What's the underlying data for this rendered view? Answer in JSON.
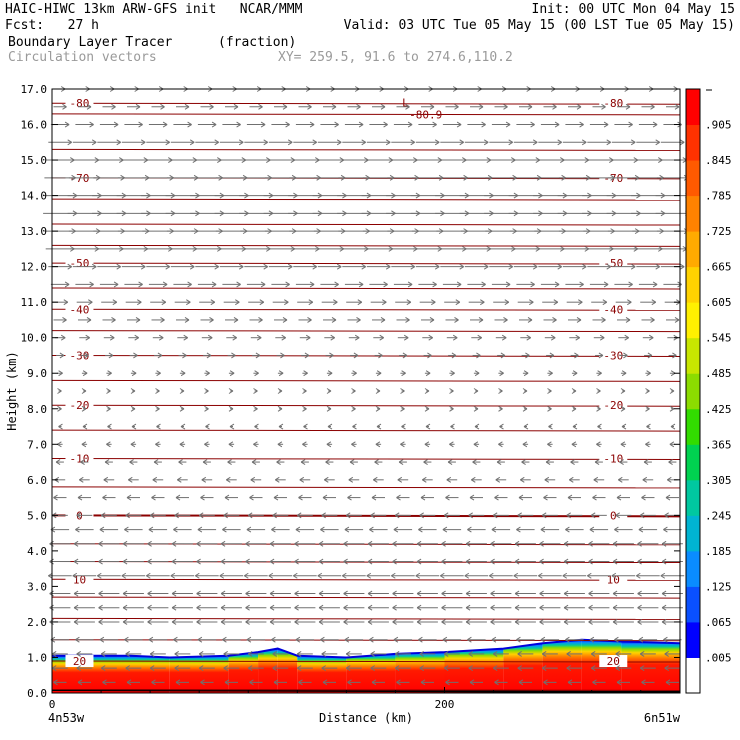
{
  "header": {
    "line1_left": "HAIC-HIWC 13km ARW-GFS init   NCAR/MMM",
    "line1_right": "Init: 00 UTC Mon 04 May 15",
    "line2_left": "Fcst:   27 h",
    "line2_right": "Valid: 03 UTC Tue 05 May 15 (00 LST Tue 05 May 15)",
    "line3_left": "Boundary Layer Tracer",
    "line3_mid": "(fraction)",
    "line4_left": "Circulation vectors",
    "line4_mid": "XY= 259.5, 91.6 to 274.6,110.2"
  },
  "chart_data": {
    "type": "heatmap",
    "title": "Boundary Layer Tracer",
    "units": "(fraction)",
    "xlabel": "Distance (km)",
    "ylabel": "Height (km)",
    "xlim": [
      0,
      320
    ],
    "ylim": [
      0,
      17
    ],
    "x_ticks": [
      0,
      200
    ],
    "y_ticks": [
      0.0,
      1.0,
      2.0,
      3.0,
      4.0,
      5.0,
      6.0,
      7.0,
      8.0,
      9.0,
      10.0,
      11.0,
      12.0,
      13.0,
      14.0,
      15.0,
      16.0,
      17.0
    ],
    "x_end_labels": [
      "4n53w",
      "6n51w"
    ],
    "colorbar": {
      "labels": [
        ".005",
        ".065",
        ".125",
        ".185",
        ".245",
        ".305",
        ".365",
        ".425",
        ".485",
        ".545",
        ".605",
        ".665",
        ".725",
        ".785",
        ".845",
        ".905"
      ],
      "colors": [
        "#0000ff",
        "#0a50ff",
        "#0a8cff",
        "#00b4d2",
        "#00c8a0",
        "#00d250",
        "#32dc00",
        "#8cdc00",
        "#c8e600",
        "#fff000",
        "#ffd200",
        "#ffaa00",
        "#ff8200",
        "#ff5a00",
        "#ff3200",
        "#ff0000"
      ]
    },
    "tracer_top_km": [
      [
        0,
        1.05
      ],
      [
        40,
        1.05
      ],
      [
        60,
        1.0
      ],
      [
        90,
        1.05
      ],
      [
        105,
        1.15
      ],
      [
        115,
        1.25
      ],
      [
        125,
        1.05
      ],
      [
        150,
        1.0
      ],
      [
        175,
        1.1
      ],
      [
        200,
        1.15
      ],
      [
        230,
        1.25
      ],
      [
        250,
        1.4
      ],
      [
        270,
        1.5
      ],
      [
        290,
        1.45
      ],
      [
        320,
        1.4
      ]
    ],
    "temperature_contours": [
      {
        "level": "20",
        "height_km": 0.9
      },
      {
        "level": "10",
        "height_km": 3.2
      },
      {
        "level": "0",
        "height_km": 5.0
      },
      {
        "level": "-10",
        "height_km": 6.6
      },
      {
        "level": "-20",
        "height_km": 8.1
      },
      {
        "level": "-30",
        "height_km": 9.5
      },
      {
        "level": "-40",
        "height_km": 10.8
      },
      {
        "level": "-50",
        "height_km": 12.1
      },
      {
        "level": "-70",
        "height_km": 14.5
      },
      {
        "level": "-80",
        "height_km": 16.6
      }
    ],
    "extra_contours_km": [
      0.1,
      1.5,
      2.1,
      2.7,
      3.7,
      4.2,
      5.8,
      7.4,
      8.8,
      10.2,
      11.4,
      12.6,
      13.2,
      13.9,
      15.3,
      16.3
    ],
    "min_label": {
      "text": "-80.9",
      "marker": "L",
      "x_km": 182,
      "height_km": 16.4
    },
    "wind_vectors": {
      "rows_km": [
        0.3,
        0.7,
        1.1,
        1.5,
        2.0,
        2.4,
        2.8,
        3.3,
        3.7,
        4.2,
        4.6,
        5.0,
        5.5,
        6.0,
        6.5,
        7.0,
        7.5,
        8.0,
        8.5,
        9.0,
        9.5,
        10.0,
        10.5,
        11.0,
        11.5,
        12.0,
        12.5,
        13.0,
        13.5,
        14.0,
        14.5,
        15.0,
        15.5,
        16.0,
        16.5,
        17.0
      ],
      "u_by_row": [
        -5,
        -6,
        -6,
        -7,
        -8,
        -8,
        -8,
        -9,
        -8,
        -8,
        -7,
        -6,
        -5,
        -4,
        -3,
        -2,
        -1,
        0,
        1,
        2,
        3,
        4,
        5,
        6,
        7,
        9,
        11,
        12,
        13,
        13,
        12,
        11,
        9,
        7,
        5,
        4
      ]
    }
  }
}
